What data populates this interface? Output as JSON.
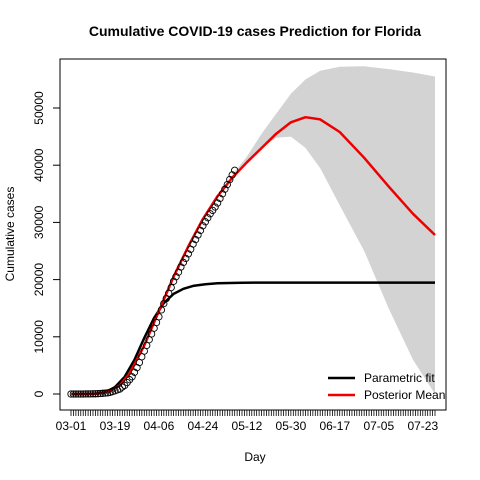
{
  "chart_data": {
    "type": "line",
    "title": "Cumulative COVID-19 cases Prediction for Florida",
    "xlabel": "Day",
    "ylabel": "Cumulative cases",
    "x_tick_labels": [
      "03-01",
      "03-19",
      "04-06",
      "04-24",
      "05-12",
      "05-30",
      "06-17",
      "07-05",
      "07-23"
    ],
    "x_ticks_day_index": [
      0,
      18,
      36,
      54,
      72,
      90,
      108,
      126,
      144
    ],
    "x_range_days": [
      0,
      149
    ],
    "y_ticks": [
      0,
      10000,
      20000,
      30000,
      40000,
      50000
    ],
    "ylim": [
      -1500,
      59000
    ],
    "grid": false,
    "legend_position": "bottom-right",
    "series": [
      {
        "name": "Parametric fit",
        "color": "#000000",
        "line": true,
        "x_days": [
          0,
          10,
          14,
          18,
          22,
          26,
          30,
          34,
          38,
          42,
          46,
          50,
          55,
          60,
          70,
          90,
          120,
          149
        ],
        "y": [
          0,
          50,
          300,
          1200,
          3000,
          6000,
          9800,
          13300,
          15900,
          17500,
          18400,
          18900,
          19200,
          19350,
          19450,
          19470,
          19470,
          19470
        ]
      },
      {
        "name": "Posterior Mean",
        "color": "#ee0000",
        "line": true,
        "x_days": [
          0,
          10,
          16,
          20,
          24,
          30,
          36,
          42,
          48,
          54,
          60,
          66,
          72,
          78,
          84,
          90,
          96,
          102,
          110,
          120,
          130,
          140,
          149
        ],
        "y": [
          0,
          50,
          500,
          1500,
          3600,
          8500,
          14500,
          20500,
          25800,
          30600,
          34600,
          37800,
          40500,
          43000,
          45500,
          47500,
          48400,
          48000,
          45800,
          41300,
          36300,
          31500,
          27800
        ]
      },
      {
        "name": "",
        "color": "#000000",
        "points": true,
        "x_days": [
          0,
          1,
          2,
          3,
          4,
          5,
          6,
          7,
          8,
          9,
          10,
          11,
          12,
          13,
          14,
          15,
          16,
          17,
          18,
          19,
          20,
          21,
          22,
          23,
          24,
          25,
          26,
          27,
          28,
          29,
          30,
          31,
          32,
          33,
          34,
          35,
          36,
          37,
          38,
          39,
          40,
          41,
          42,
          43,
          44,
          45,
          46,
          47,
          48,
          49,
          50,
          51,
          52,
          53,
          54,
          55,
          56,
          57,
          58,
          59,
          60,
          61,
          62,
          63,
          64,
          65,
          66,
          67
        ],
        "y": [
          0,
          0,
          2,
          3,
          5,
          7,
          10,
          15,
          20,
          30,
          40,
          60,
          80,
          120,
          160,
          200,
          300,
          400,
          560,
          720,
          850,
          1200,
          1500,
          2000,
          2500,
          3000,
          3800,
          4600,
          5500,
          6500,
          7500,
          8500,
          9500,
          10500,
          11500,
          12500,
          13500,
          14700,
          15800,
          16700,
          17600,
          18600,
          19700,
          20500,
          21300,
          22200,
          23000,
          23700,
          24500,
          25300,
          26200,
          27000,
          27800,
          28600,
          29400,
          30100,
          30800,
          31500,
          32100,
          32700,
          33400,
          34200,
          35000,
          35800,
          36600,
          37500,
          38300,
          39100
        ]
      }
    ],
    "band": {
      "color": "#d3d3d3",
      "x_days": [
        66,
        72,
        78,
        84,
        90,
        96,
        102,
        110,
        120,
        130,
        140,
        149
      ],
      "upper": [
        38300,
        41500,
        45500,
        49000,
        52500,
        55000,
        56500,
        57200,
        57300,
        56800,
        56200,
        55500
      ],
      "lower": [
        38000,
        40700,
        43000,
        44800,
        45000,
        43000,
        39500,
        33000,
        25000,
        15000,
        6000,
        0
      ]
    }
  }
}
